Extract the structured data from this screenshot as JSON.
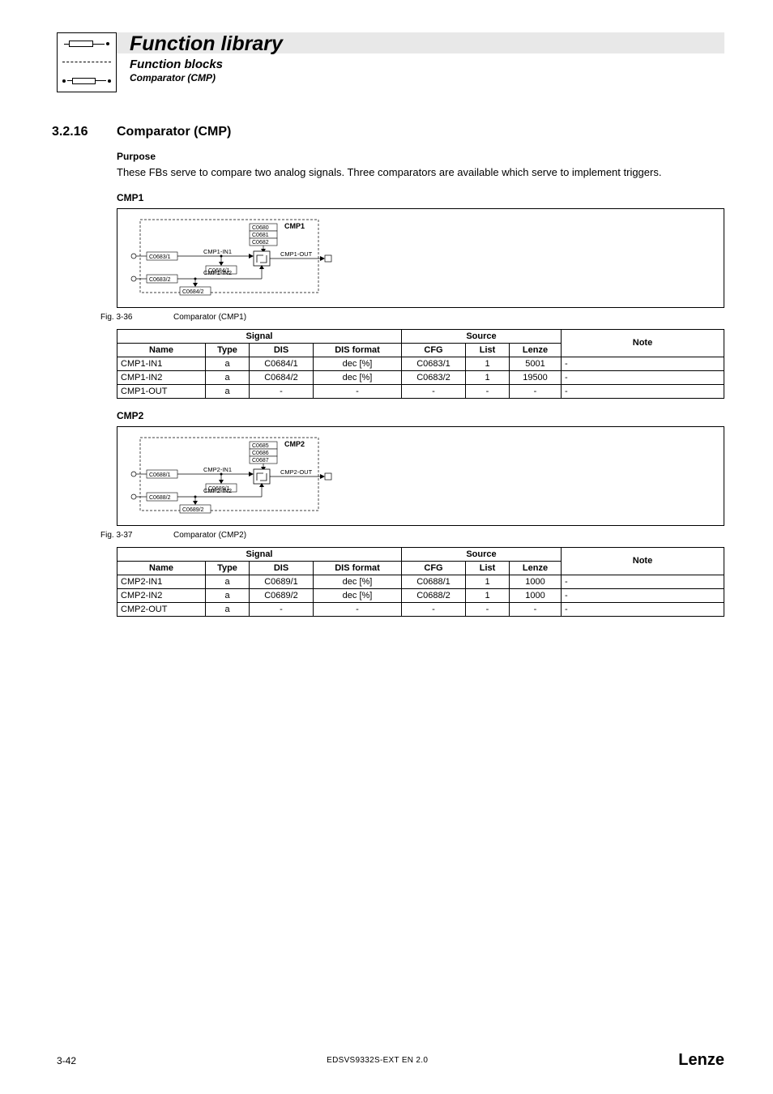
{
  "header": {
    "title": "Function library",
    "subtitle": "Function blocks",
    "subsub": "Comparator (CMP)"
  },
  "section": {
    "number": "3.2.16",
    "title": "Comparator (CMP)",
    "purpose_label": "Purpose",
    "purpose_text": "These FBs serve to compare two analog signals. Three comparators are available which serve to implement triggers."
  },
  "cmp1": {
    "label": "CMP1",
    "diagram": {
      "title": "CMP1",
      "codes_top": [
        "C0680",
        "C0681",
        "C0682"
      ],
      "in1_label": "CMP1-IN1",
      "in1_cfg": "C0683/1",
      "in1_dis": "C0684/1",
      "in2_label": "CMP1-IN2",
      "in2_cfg": "C0683/2",
      "in2_dis": "C0684/2",
      "out_label": "CMP1-OUT"
    },
    "fig": {
      "num": "Fig. 3-36",
      "caption": "Comparator (CMP1)"
    },
    "table": {
      "hdr_signal": "Signal",
      "hdr_source": "Source",
      "hdr_note": "Note",
      "cols": [
        "Name",
        "Type",
        "DIS",
        "DIS format",
        "CFG",
        "List",
        "Lenze"
      ],
      "rows": [
        {
          "name": "CMP1-IN1",
          "type": "a",
          "dis": "C0684/1",
          "disfmt": "dec [%]",
          "cfg": "C0683/1",
          "list": "1",
          "lenze": "5001",
          "note": "-"
        },
        {
          "name": "CMP1-IN2",
          "type": "a",
          "dis": "C0684/2",
          "disfmt": "dec [%]",
          "cfg": "C0683/2",
          "list": "1",
          "lenze": "19500",
          "note": "-"
        },
        {
          "name": "CMP1-OUT",
          "type": "a",
          "dis": "-",
          "disfmt": "-",
          "cfg": "-",
          "list": "-",
          "lenze": "-",
          "note": "-"
        }
      ]
    }
  },
  "cmp2": {
    "label": "CMP2",
    "diagram": {
      "title": "CMP2",
      "codes_top": [
        "C0685",
        "C0686",
        "C0687"
      ],
      "in1_label": "CMP2-IN1",
      "in1_cfg": "C0688/1",
      "in1_dis": "C0689/1",
      "in2_label": "CMP2-IN2",
      "in2_cfg": "C0688/2",
      "in2_dis": "C0689/2",
      "out_label": "CMP2-OUT"
    },
    "fig": {
      "num": "Fig. 3-37",
      "caption": "Comparator (CMP2)"
    },
    "table": {
      "hdr_signal": "Signal",
      "hdr_source": "Source",
      "hdr_note": "Note",
      "cols": [
        "Name",
        "Type",
        "DIS",
        "DIS format",
        "CFG",
        "List",
        "Lenze"
      ],
      "rows": [
        {
          "name": "CMP2-IN1",
          "type": "a",
          "dis": "C0689/1",
          "disfmt": "dec [%]",
          "cfg": "C0688/1",
          "list": "1",
          "lenze": "1000",
          "note": "-"
        },
        {
          "name": "CMP2-IN2",
          "type": "a",
          "dis": "C0689/2",
          "disfmt": "dec [%]",
          "cfg": "C0688/2",
          "list": "1",
          "lenze": "1000",
          "note": "-"
        },
        {
          "name": "CMP2-OUT",
          "type": "a",
          "dis": "-",
          "disfmt": "-",
          "cfg": "-",
          "list": "-",
          "lenze": "-",
          "note": "-"
        }
      ]
    }
  },
  "footer": {
    "page": "3-42",
    "docid": "EDSVS9332S-EXT EN 2.0",
    "brand": "Lenze"
  },
  "style": {
    "box_font": 7,
    "label_font": 7.5,
    "bold_font": 9
  }
}
